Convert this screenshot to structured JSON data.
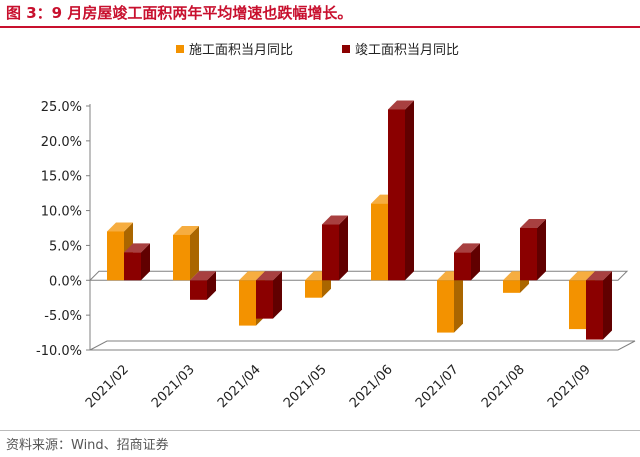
{
  "title": "图 3：9 月房屋竣工面积两年平均增速也跌幅增长。",
  "source": "资料来源：Wind、招商证券",
  "colors": {
    "construction": "#f39200",
    "completion": "#8b0000",
    "title": "#c8102e"
  },
  "chart_data": {
    "type": "bar",
    "categories": [
      "2021/02",
      "2021/03",
      "2021/04",
      "2021/05",
      "2021/06",
      "2021/07",
      "2021/08",
      "2021/09"
    ],
    "series": [
      {
        "name": "施工面积当月同比",
        "values": [
          7.0,
          6.5,
          -6.5,
          -2.5,
          11.0,
          -7.5,
          -1.8,
          -7.0
        ]
      },
      {
        "name": "竣工面积当月同比",
        "values": [
          4.0,
          -2.8,
          -5.5,
          8.0,
          24.5,
          4.0,
          7.5,
          -8.5
        ]
      }
    ],
    "y_ticks": [
      "25.0%",
      "20.0%",
      "15.0%",
      "10.0%",
      "5.0%",
      "0.0%",
      "-5.0%",
      "-10.0%"
    ],
    "ylim": [
      -10,
      25
    ],
    "legend_position": "top",
    "grid": false
  }
}
